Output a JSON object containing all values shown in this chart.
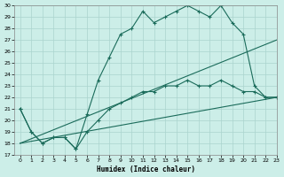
{
  "xlabel": "Humidex (Indice chaleur)",
  "background_color": "#cceee8",
  "grid_color": "#aad4ce",
  "line_color": "#1a6b5a",
  "ylim": [
    17,
    30
  ],
  "xlim": [
    -0.5,
    23
  ],
  "yticks": [
    17,
    18,
    19,
    20,
    21,
    22,
    23,
    24,
    25,
    26,
    27,
    28,
    29,
    30
  ],
  "xticks": [
    0,
    1,
    2,
    3,
    4,
    5,
    6,
    7,
    8,
    9,
    10,
    11,
    12,
    13,
    14,
    15,
    16,
    17,
    18,
    19,
    20,
    21,
    22,
    23
  ],
  "curve1_x": [
    0,
    1,
    2,
    3,
    4,
    5,
    6,
    7,
    8,
    9,
    10,
    11,
    12,
    13,
    14,
    15,
    16,
    17,
    18,
    19,
    20,
    21,
    22,
    23
  ],
  "curve1_y": [
    21,
    19,
    18,
    18.5,
    18.5,
    17.5,
    20.5,
    23.5,
    25.5,
    27.5,
    28,
    29.5,
    28.5,
    29,
    29.5,
    30,
    29.5,
    29,
    30,
    28.5,
    27.5,
    23,
    22,
    22
  ],
  "curve2_x": [
    0,
    1,
    2,
    3,
    4,
    5,
    6,
    7,
    8,
    9,
    10,
    11,
    12,
    13,
    14,
    15,
    16,
    17,
    18,
    19,
    20,
    21,
    22,
    23
  ],
  "curve2_y": [
    21,
    19,
    18,
    18.5,
    18.5,
    17.5,
    19,
    20,
    21,
    21.5,
    22,
    22.5,
    22.5,
    23,
    23,
    23.5,
    23,
    23,
    23.5,
    23,
    22.5,
    22.5,
    22,
    22
  ],
  "line1_x": [
    0,
    23
  ],
  "line1_y": [
    18,
    27
  ],
  "line2_x": [
    0,
    23
  ],
  "line2_y": [
    18,
    22
  ]
}
